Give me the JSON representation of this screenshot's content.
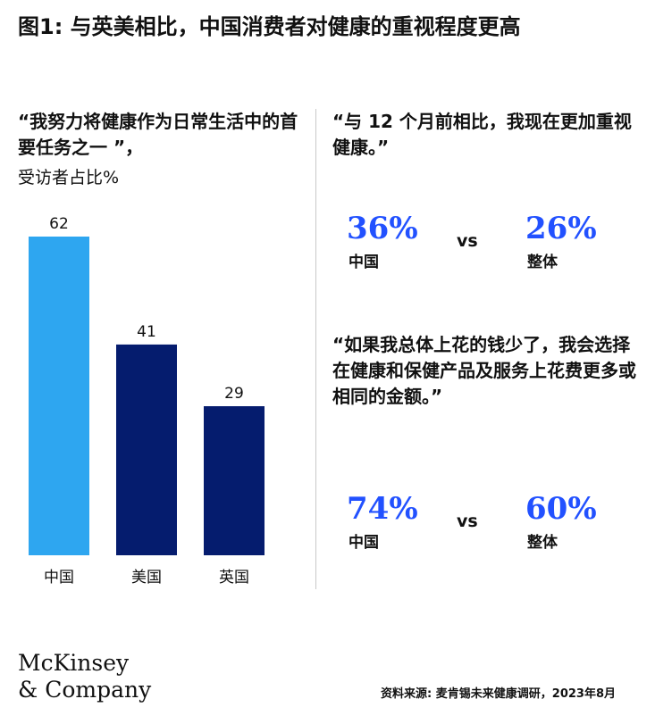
{
  "title": "图1: 与英美相比，中国消费者对健康的重视程度更高",
  "left_panel": {
    "quote": "“我努力将健康作为日常生活中的首要任务之一 ”，",
    "subtitle": "受访者占比%"
  },
  "chart_data": {
    "type": "bar",
    "categories": [
      "中国",
      "美国",
      "英国"
    ],
    "values": [
      62,
      41,
      29
    ],
    "colors": [
      "#2ea6f0",
      "#051c6e",
      "#051c6e"
    ],
    "ylim": [
      0,
      62
    ],
    "grid": false
  },
  "right_top": {
    "quote": "“与 12 个月前相比，我现在更加重视健康。”",
    "china_value": "36%",
    "china_label": "中国",
    "vs": "vs",
    "overall_value": "26%",
    "overall_label": "整体"
  },
  "right_bottom": {
    "quote": "“如果我总体上花的钱少了，我会选择在健康和保健产品及服务上花费更多或相同的金额。”",
    "china_value": "74%",
    "china_label": "中国",
    "vs": "vs",
    "overall_value": "60%",
    "overall_label": "整体"
  },
  "colors": {
    "accent": "#2251ff"
  },
  "footer": {
    "logo_line1": "McKinsey",
    "logo_line2": "& Company",
    "source": "资料来源: 麦肯锡未来健康调研，2023年8月"
  }
}
